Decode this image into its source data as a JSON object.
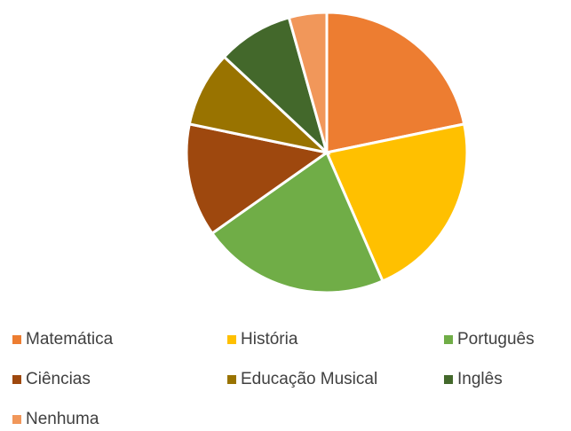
{
  "chart_data": {
    "type": "pie",
    "categories": [
      "Matemática",
      "História",
      "Português",
      "Ciências",
      "Educação Musical",
      "Inglês",
      "Nenhuma"
    ],
    "values": [
      5,
      5,
      5,
      3,
      2,
      2,
      1
    ],
    "colors": [
      "#ed7d31",
      "#ffc000",
      "#70ad47",
      "#9e480e",
      "#997300",
      "#43682b",
      "#f1975a"
    ],
    "legend": "bottom"
  }
}
